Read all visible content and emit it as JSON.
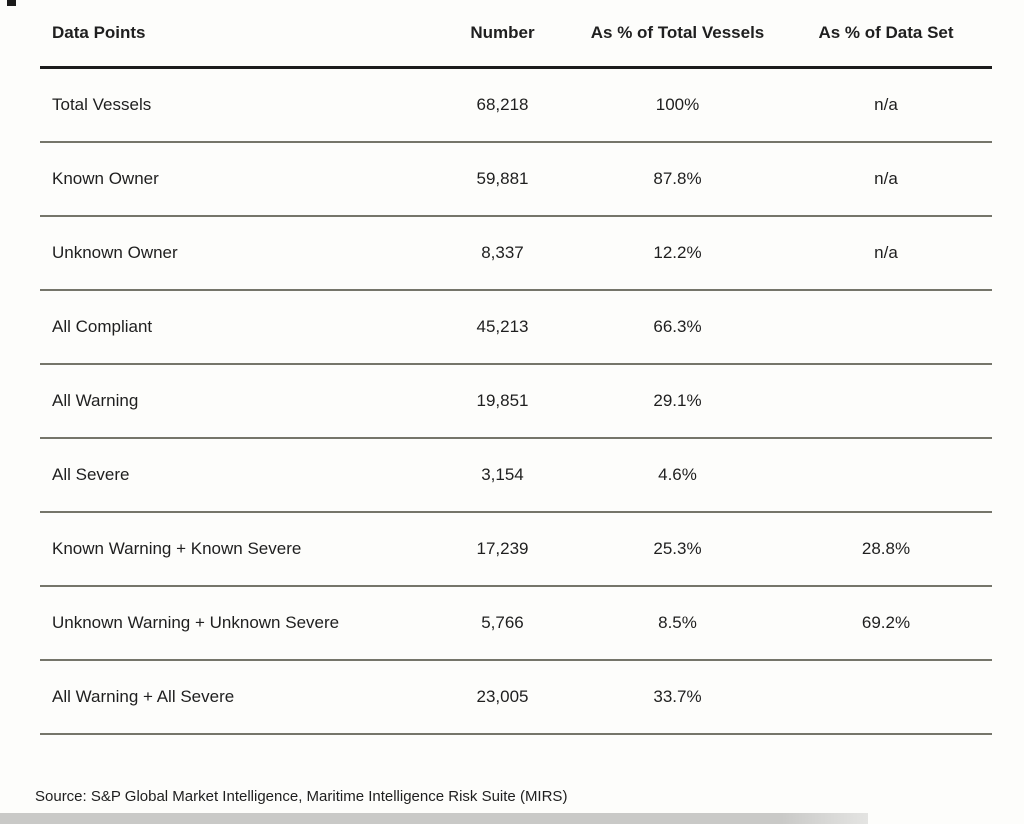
{
  "table": {
    "columns": [
      "Data Points",
      "Number",
      "As % of Total Vessels",
      "As % of Data Set"
    ],
    "rows": [
      {
        "label": "Total Vessels",
        "number": "68,218",
        "pct_total_vessels": "100%",
        "pct_data_set": "n/a"
      },
      {
        "label": "Known Owner",
        "number": "59,881",
        "pct_total_vessels": "87.8%",
        "pct_data_set": "n/a"
      },
      {
        "label": "Unknown Owner",
        "number": "8,337",
        "pct_total_vessels": "12.2%",
        "pct_data_set": "n/a"
      },
      {
        "label": "All Compliant",
        "number": "45,213",
        "pct_total_vessels": "66.3%",
        "pct_data_set": ""
      },
      {
        "label": "All Warning",
        "number": "19,851",
        "pct_total_vessels": "29.1%",
        "pct_data_set": ""
      },
      {
        "label": "All Severe",
        "number": "3,154",
        "pct_total_vessels": "4.6%",
        "pct_data_set": ""
      },
      {
        "label": "Known Warning + Known Severe",
        "number": "17,239",
        "pct_total_vessels": "25.3%",
        "pct_data_set": "28.8%"
      },
      {
        "label": "Unknown Warning + Unknown Severe",
        "number": "5,766",
        "pct_total_vessels": "8.5%",
        "pct_data_set": "69.2%"
      },
      {
        "label": "All Warning + All Severe",
        "number": "23,005",
        "pct_total_vessels": "33.7%",
        "pct_data_set": ""
      }
    ]
  },
  "source": "Source: S&P Global Market Intelligence, Maritime Intelligence Risk Suite (MIRS)",
  "colors": {
    "header_rule": "#1c1c1c",
    "row_divider": "#75756a",
    "text": "#1f1f1f",
    "bottom_band": "#c9c9c7"
  },
  "chart_data": {
    "type": "table",
    "title": "",
    "columns": [
      "Data Points",
      "Number",
      "As % of Total Vessels",
      "As % of Data Set"
    ],
    "rows": [
      [
        "Total Vessels",
        68218,
        "100%",
        "n/a"
      ],
      [
        "Known Owner",
        59881,
        "87.8%",
        "n/a"
      ],
      [
        "Unknown Owner",
        8337,
        "12.2%",
        "n/a"
      ],
      [
        "All Compliant",
        45213,
        "66.3%",
        ""
      ],
      [
        "All Warning",
        19851,
        "29.1%",
        ""
      ],
      [
        "All Severe",
        3154,
        "4.6%",
        ""
      ],
      [
        "Known Warning + Known Severe",
        17239,
        "25.3%",
        "28.8%"
      ],
      [
        "Unknown Warning + Unknown Severe",
        5766,
        "8.5%",
        "69.2%"
      ],
      [
        "All Warning + All Severe",
        23005,
        "33.7%",
        ""
      ]
    ],
    "source_note": "Source: S&P Global Market Intelligence, Maritime Intelligence Risk Suite (MIRS)"
  }
}
